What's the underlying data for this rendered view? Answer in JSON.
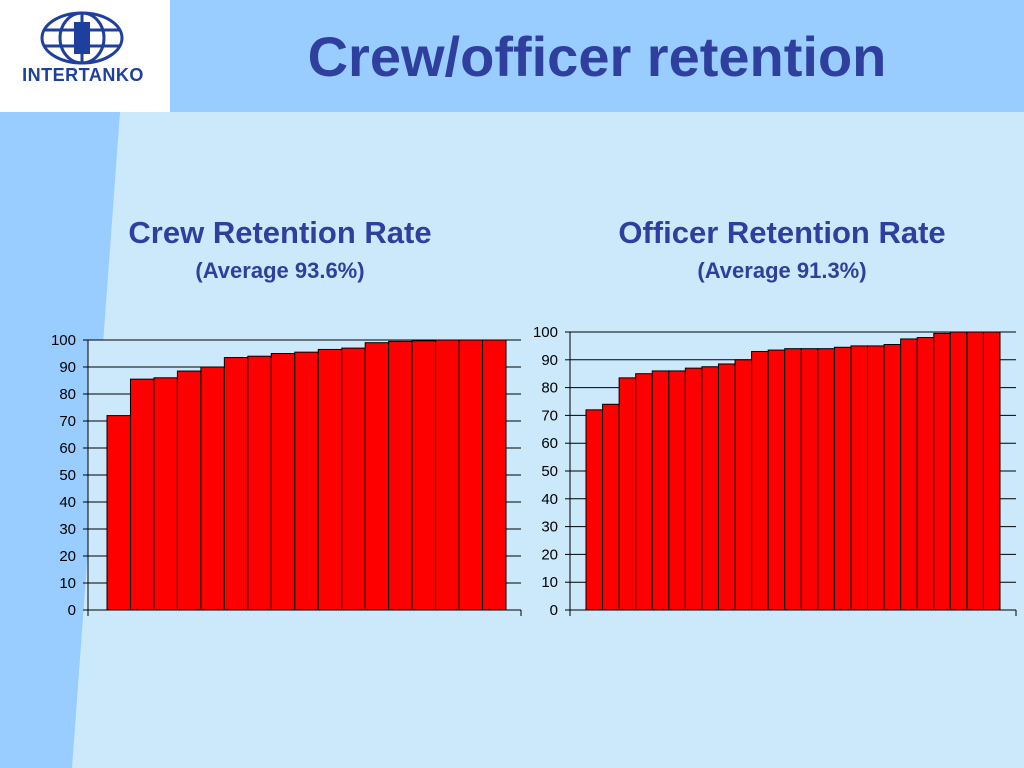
{
  "header": {
    "logo_text": "INTERTANKO",
    "title": "Crew/officer retention"
  },
  "colors": {
    "bar_fill": "#ff0000",
    "title_text": "#2f3f9e",
    "background": "#cce9fc",
    "header_band": "#99ccff",
    "logo_blue": "#1f3f9e"
  },
  "chart_data": [
    {
      "type": "bar",
      "title": "Crew Retention Rate",
      "subtitle": "(Average 93.6%)",
      "ylim": [
        0,
        100
      ],
      "yticks": [
        0,
        10,
        20,
        30,
        40,
        50,
        60,
        70,
        80,
        90,
        100
      ],
      "ytick_labels": [
        "0",
        "10",
        "20",
        "30",
        "40",
        "50",
        "60",
        "70",
        "80",
        "90",
        "100"
      ],
      "grid": true,
      "values": [
        72,
        85.5,
        86,
        88.5,
        90,
        93.5,
        94,
        95,
        95.5,
        96.5,
        97,
        99,
        99.5,
        99.7,
        100,
        100,
        100
      ]
    },
    {
      "type": "bar",
      "title": "Officer Retention Rate",
      "subtitle": "(Average 91.3%)",
      "ylim": [
        0,
        100
      ],
      "yticks": [
        0,
        10,
        20,
        30,
        40,
        50,
        60,
        70,
        80,
        90,
        100
      ],
      "ytick_labels": [
        "0",
        "10",
        "20",
        "30",
        "40",
        "50",
        "60",
        "70",
        "80",
        "90",
        "100"
      ],
      "grid": true,
      "values": [
        72,
        74,
        83.5,
        85,
        86,
        86,
        87,
        87.5,
        88.5,
        90,
        93,
        93.5,
        94,
        94,
        94,
        94.5,
        95,
        95,
        95.5,
        97.5,
        98,
        99.5,
        100,
        100,
        100
      ]
    }
  ]
}
